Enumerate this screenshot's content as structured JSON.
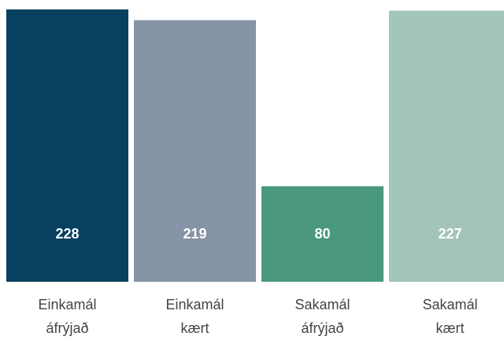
{
  "chart_data": {
    "type": "bar",
    "categories": [
      "Einkamál áfrýjað",
      "Einkamál kært",
      "Sakamál áfrýjað",
      "Sakamál kært"
    ],
    "values": [
      228,
      219,
      80,
      227
    ],
    "colors": [
      "#07415f",
      "#8793a6",
      "#4a9880",
      "#a3c4b9"
    ]
  }
}
